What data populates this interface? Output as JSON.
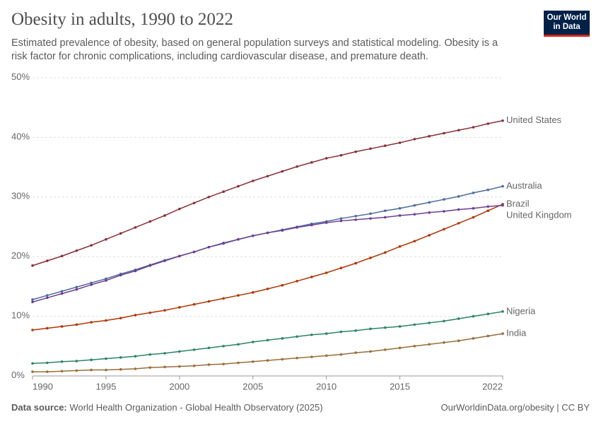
{
  "chart_data": {
    "type": "line",
    "title": "Obesity in adults, 1990 to 2022",
    "subtitle": "Estimated prevalence of obesity, based on general population surveys and statistical modeling. Obesity is a risk factor for chronic complications, including cardiovascular disease, and premature death.",
    "logo": [
      "Our World",
      "in Data"
    ],
    "source_label": "Data source:",
    "source": "World Health Organization - Global Health Observatory (2025)",
    "footer_right": "OurWorldinData.org/obesity | CC BY",
    "x": [
      1990,
      1991,
      1992,
      1993,
      1994,
      1995,
      1996,
      1997,
      1998,
      1999,
      2000,
      2001,
      2002,
      2003,
      2004,
      2005,
      2006,
      2007,
      2008,
      2009,
      2010,
      2011,
      2012,
      2013,
      2014,
      2015,
      2016,
      2017,
      2018,
      2019,
      2020,
      2021,
      2022
    ],
    "xlim": [
      1990,
      2022
    ],
    "xticks": [
      1990,
      1995,
      2000,
      2005,
      2010,
      2015,
      2022
    ],
    "ylim": [
      0,
      50
    ],
    "yticks": [
      {
        "value": 0,
        "label": "0%"
      },
      {
        "value": 10,
        "label": "10%"
      },
      {
        "value": 20,
        "label": "20%"
      },
      {
        "value": 30,
        "label": "30%"
      },
      {
        "value": 40,
        "label": "40%"
      },
      {
        "value": 50,
        "label": "50%"
      }
    ],
    "grid": true,
    "series": [
      {
        "name": "United States",
        "color": "#883039",
        "values": [
          18.5,
          19.3,
          20.1,
          21.0,
          21.9,
          22.9,
          23.9,
          24.9,
          25.9,
          26.9,
          28.0,
          29.0,
          30.0,
          30.9,
          31.8,
          32.7,
          33.5,
          34.3,
          35.1,
          35.8,
          36.5,
          37.0,
          37.6,
          38.1,
          38.6,
          39.1,
          39.7,
          40.2,
          40.7,
          41.2,
          41.7,
          42.3,
          42.8
        ]
      },
      {
        "name": "Australia",
        "color": "#4c6a9c",
        "values": [
          12.8,
          13.5,
          14.2,
          14.9,
          15.6,
          16.3,
          17.1,
          17.8,
          18.6,
          19.4,
          20.1,
          20.8,
          21.6,
          22.2,
          22.9,
          23.5,
          24.0,
          24.5,
          25.0,
          25.5,
          25.9,
          26.4,
          26.8,
          27.2,
          27.7,
          28.1,
          28.6,
          29.1,
          29.6,
          30.1,
          30.7,
          31.2,
          31.8
        ]
      },
      {
        "name": "Brazil",
        "color": "#b13507",
        "values": [
          7.7,
          8.0,
          8.3,
          8.6,
          9.0,
          9.3,
          9.7,
          10.2,
          10.6,
          11.0,
          11.5,
          12.0,
          12.5,
          13.0,
          13.5,
          14.0,
          14.6,
          15.2,
          15.9,
          16.6,
          17.3,
          18.1,
          18.9,
          19.8,
          20.7,
          21.7,
          22.6,
          23.6,
          24.6,
          25.6,
          26.6,
          27.7,
          28.8
        ]
      },
      {
        "name": "United Kingdom",
        "color": "#6d3e91",
        "values": [
          12.4,
          13.1,
          13.8,
          14.5,
          15.3,
          16.0,
          16.9,
          17.6,
          18.5,
          19.3,
          20.1,
          20.8,
          21.6,
          22.3,
          22.9,
          23.5,
          24.0,
          24.4,
          24.9,
          25.3,
          25.7,
          26.0,
          26.2,
          26.4,
          26.6,
          26.9,
          27.1,
          27.4,
          27.6,
          27.9,
          28.1,
          28.4,
          28.6
        ]
      },
      {
        "name": "Nigeria",
        "color": "#2c8465",
        "values": [
          2.1,
          2.2,
          2.4,
          2.5,
          2.7,
          2.9,
          3.1,
          3.3,
          3.6,
          3.8,
          4.1,
          4.4,
          4.7,
          5.0,
          5.3,
          5.7,
          6.0,
          6.3,
          6.6,
          6.9,
          7.1,
          7.4,
          7.6,
          7.9,
          8.1,
          8.3,
          8.6,
          8.9,
          9.2,
          9.6,
          10.0,
          10.4,
          10.8
        ]
      },
      {
        "name": "India",
        "color": "#996d39",
        "values": [
          0.7,
          0.7,
          0.8,
          0.9,
          1.0,
          1.0,
          1.1,
          1.2,
          1.4,
          1.5,
          1.6,
          1.7,
          1.9,
          2.0,
          2.2,
          2.4,
          2.6,
          2.8,
          3.0,
          3.2,
          3.4,
          3.6,
          3.9,
          4.1,
          4.4,
          4.7,
          5.0,
          5.3,
          5.6,
          5.9,
          6.3,
          6.7,
          7.1
        ]
      }
    ]
  }
}
